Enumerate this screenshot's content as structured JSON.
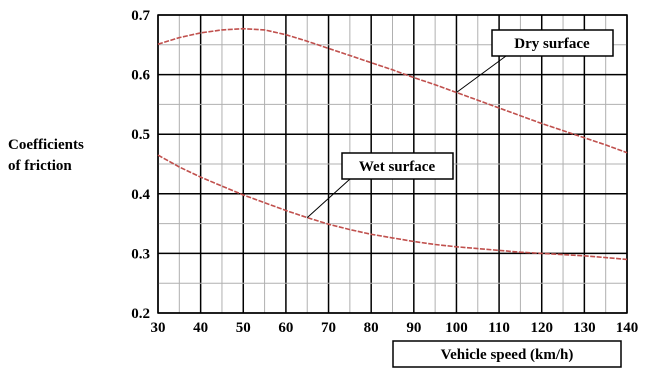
{
  "chart_data": {
    "type": "line",
    "xlabel": "Vehicle speed (km/h)",
    "ylabel": [
      "Coefficients",
      "of friction"
    ],
    "xlim": [
      30,
      140
    ],
    "ylim": [
      0.2,
      0.7
    ],
    "xticks": [
      30,
      40,
      50,
      60,
      70,
      80,
      90,
      100,
      110,
      120,
      130,
      140
    ],
    "yticks": [
      "0.2",
      "0.3",
      "0.4",
      "0.5",
      "0.6",
      "0.7"
    ],
    "grid": true,
    "series": [
      {
        "name": "Dry surface",
        "color": "#c0504d",
        "x": [
          30,
          35,
          40,
          45,
          50,
          55,
          60,
          65,
          70,
          75,
          80,
          85,
          90,
          95,
          100,
          105,
          110,
          115,
          120,
          125,
          130,
          135,
          140
        ],
        "y": [
          0.651,
          0.662,
          0.67,
          0.675,
          0.677,
          0.675,
          0.667,
          0.656,
          0.644,
          0.632,
          0.62,
          0.608,
          0.595,
          0.583,
          0.57,
          0.557,
          0.544,
          0.531,
          0.518,
          0.506,
          0.494,
          0.482,
          0.469
        ]
      },
      {
        "name": "Wet surface",
        "color": "#c0504d",
        "x": [
          30,
          35,
          40,
          45,
          50,
          55,
          60,
          65,
          70,
          75,
          80,
          85,
          90,
          95,
          100,
          105,
          110,
          115,
          120,
          125,
          130,
          135,
          140
        ],
        "y": [
          0.465,
          0.445,
          0.428,
          0.413,
          0.398,
          0.385,
          0.372,
          0.36,
          0.349,
          0.34,
          0.332,
          0.326,
          0.32,
          0.315,
          0.311,
          0.308,
          0.305,
          0.302,
          0.3,
          0.298,
          0.296,
          0.293,
          0.29
        ]
      }
    ],
    "annotations": [
      {
        "text": "Dry surface",
        "series": 0,
        "arrow_to": [
          100,
          0.57
        ]
      },
      {
        "text": "Wet surface",
        "series": 1,
        "arrow_to": [
          65,
          0.36
        ]
      }
    ]
  }
}
